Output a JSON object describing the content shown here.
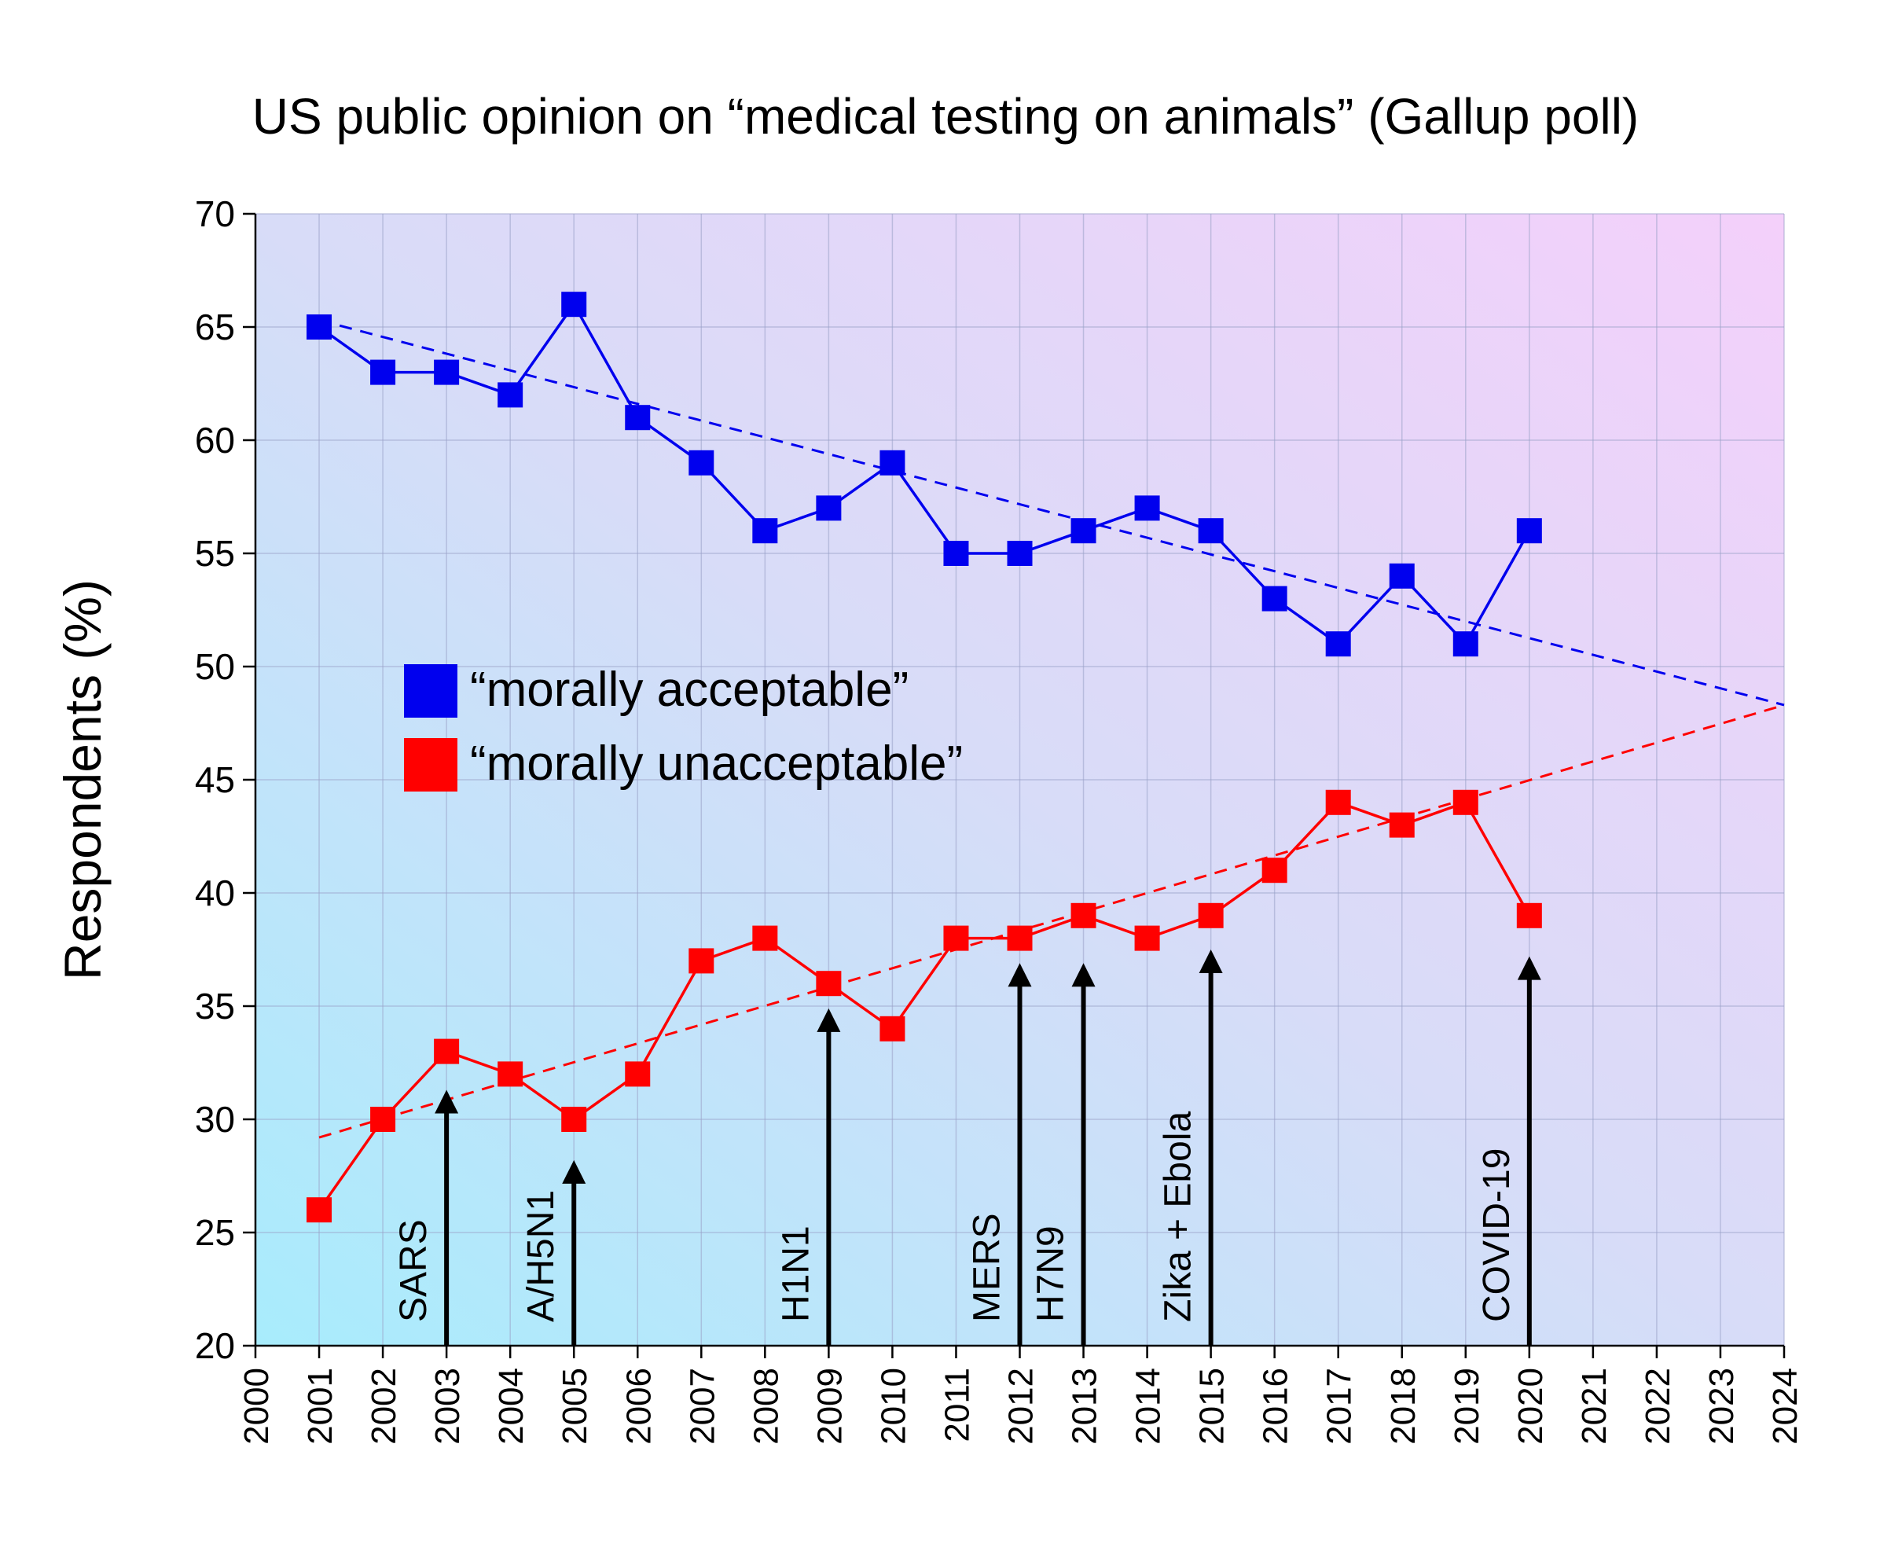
{
  "chart_data": {
    "type": "line",
    "title": "US public opinion on “medical testing on animals” (Gallup poll)",
    "ylabel": "Respondents (%)",
    "xlabel": "",
    "xlim": [
      2000,
      2024
    ],
    "ylim": [
      20,
      70
    ],
    "x_ticks": [
      2000,
      2001,
      2002,
      2003,
      2004,
      2005,
      2006,
      2007,
      2008,
      2009,
      2010,
      2011,
      2012,
      2013,
      2014,
      2015,
      2016,
      2017,
      2018,
      2019,
      2020,
      2021,
      2022,
      2023,
      2024
    ],
    "y_ticks": [
      20,
      25,
      30,
      35,
      40,
      45,
      50,
      55,
      60,
      65,
      70
    ],
    "grid": true,
    "legend_placement": "center-left",
    "x": [
      2001,
      2002,
      2003,
      2004,
      2005,
      2006,
      2007,
      2008,
      2009,
      2010,
      2011,
      2012,
      2013,
      2014,
      2015,
      2016,
      2017,
      2018,
      2019,
      2020
    ],
    "series": [
      {
        "name": "“morally acceptable”",
        "color": "#0000ee",
        "values": [
          65,
          63,
          63,
          62,
          66,
          61,
          59,
          56,
          57,
          59,
          55,
          55,
          56,
          57,
          56,
          53,
          51,
          54,
          51,
          56
        ],
        "trend": [
          [
            2001,
            65.3
          ],
          [
            2024,
            48.3
          ]
        ]
      },
      {
        "name": "“morally unacceptable”",
        "color": "#ff0000",
        "values": [
          26,
          30,
          33,
          32,
          30,
          32,
          37,
          38,
          36,
          34,
          38,
          38,
          39,
          38,
          39,
          41,
          44,
          43,
          44,
          39
        ],
        "trend": [
          [
            2001,
            29.2
          ],
          [
            2024,
            48.3
          ]
        ]
      }
    ],
    "annotations": [
      {
        "label": "SARS",
        "x": 2003,
        "arrow_tip": 31.3
      },
      {
        "label": "A/H5N1",
        "x": 2005,
        "arrow_tip": 28.2
      },
      {
        "label": "H1N1",
        "x": 2009,
        "arrow_tip": 34.9
      },
      {
        "label": "MERS",
        "x": 2012,
        "arrow_tip": 36.9
      },
      {
        "label": "H7N9",
        "x": 2013,
        "arrow_tip": 36.9
      },
      {
        "label": "Zika + Ebola",
        "x": 2015,
        "arrow_tip": 37.5
      },
      {
        "label": "COVID-19",
        "x": 2020,
        "arrow_tip": 37.2
      }
    ]
  }
}
